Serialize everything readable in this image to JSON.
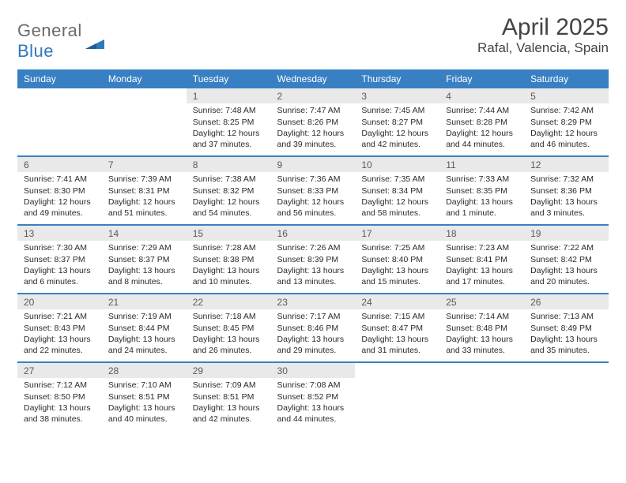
{
  "brand": {
    "part1": "General",
    "part2": "Blue"
  },
  "title": "April 2025",
  "location": "Rafal, Valencia, Spain",
  "colors": {
    "header_bg": "#3880c3",
    "header_fg": "#ffffff",
    "daynum_bg": "#e9e9e9",
    "rule": "#3880c3",
    "logo_gray": "#6b6b6b",
    "logo_blue": "#2f79b9"
  },
  "day_headers": [
    "Sunday",
    "Monday",
    "Tuesday",
    "Wednesday",
    "Thursday",
    "Friday",
    "Saturday"
  ],
  "weeks": [
    [
      {
        "empty": true
      },
      {
        "empty": true
      },
      {
        "n": "1",
        "sr": "Sunrise: 7:48 AM",
        "ss": "Sunset: 8:25 PM",
        "dl": "Daylight: 12 hours and 37 minutes."
      },
      {
        "n": "2",
        "sr": "Sunrise: 7:47 AM",
        "ss": "Sunset: 8:26 PM",
        "dl": "Daylight: 12 hours and 39 minutes."
      },
      {
        "n": "3",
        "sr": "Sunrise: 7:45 AM",
        "ss": "Sunset: 8:27 PM",
        "dl": "Daylight: 12 hours and 42 minutes."
      },
      {
        "n": "4",
        "sr": "Sunrise: 7:44 AM",
        "ss": "Sunset: 8:28 PM",
        "dl": "Daylight: 12 hours and 44 minutes."
      },
      {
        "n": "5",
        "sr": "Sunrise: 7:42 AM",
        "ss": "Sunset: 8:29 PM",
        "dl": "Daylight: 12 hours and 46 minutes."
      }
    ],
    [
      {
        "n": "6",
        "sr": "Sunrise: 7:41 AM",
        "ss": "Sunset: 8:30 PM",
        "dl": "Daylight: 12 hours and 49 minutes."
      },
      {
        "n": "7",
        "sr": "Sunrise: 7:39 AM",
        "ss": "Sunset: 8:31 PM",
        "dl": "Daylight: 12 hours and 51 minutes."
      },
      {
        "n": "8",
        "sr": "Sunrise: 7:38 AM",
        "ss": "Sunset: 8:32 PM",
        "dl": "Daylight: 12 hours and 54 minutes."
      },
      {
        "n": "9",
        "sr": "Sunrise: 7:36 AM",
        "ss": "Sunset: 8:33 PM",
        "dl": "Daylight: 12 hours and 56 minutes."
      },
      {
        "n": "10",
        "sr": "Sunrise: 7:35 AM",
        "ss": "Sunset: 8:34 PM",
        "dl": "Daylight: 12 hours and 58 minutes."
      },
      {
        "n": "11",
        "sr": "Sunrise: 7:33 AM",
        "ss": "Sunset: 8:35 PM",
        "dl": "Daylight: 13 hours and 1 minute."
      },
      {
        "n": "12",
        "sr": "Sunrise: 7:32 AM",
        "ss": "Sunset: 8:36 PM",
        "dl": "Daylight: 13 hours and 3 minutes."
      }
    ],
    [
      {
        "n": "13",
        "sr": "Sunrise: 7:30 AM",
        "ss": "Sunset: 8:37 PM",
        "dl": "Daylight: 13 hours and 6 minutes."
      },
      {
        "n": "14",
        "sr": "Sunrise: 7:29 AM",
        "ss": "Sunset: 8:37 PM",
        "dl": "Daylight: 13 hours and 8 minutes."
      },
      {
        "n": "15",
        "sr": "Sunrise: 7:28 AM",
        "ss": "Sunset: 8:38 PM",
        "dl": "Daylight: 13 hours and 10 minutes."
      },
      {
        "n": "16",
        "sr": "Sunrise: 7:26 AM",
        "ss": "Sunset: 8:39 PM",
        "dl": "Daylight: 13 hours and 13 minutes."
      },
      {
        "n": "17",
        "sr": "Sunrise: 7:25 AM",
        "ss": "Sunset: 8:40 PM",
        "dl": "Daylight: 13 hours and 15 minutes."
      },
      {
        "n": "18",
        "sr": "Sunrise: 7:23 AM",
        "ss": "Sunset: 8:41 PM",
        "dl": "Daylight: 13 hours and 17 minutes."
      },
      {
        "n": "19",
        "sr": "Sunrise: 7:22 AM",
        "ss": "Sunset: 8:42 PM",
        "dl": "Daylight: 13 hours and 20 minutes."
      }
    ],
    [
      {
        "n": "20",
        "sr": "Sunrise: 7:21 AM",
        "ss": "Sunset: 8:43 PM",
        "dl": "Daylight: 13 hours and 22 minutes."
      },
      {
        "n": "21",
        "sr": "Sunrise: 7:19 AM",
        "ss": "Sunset: 8:44 PM",
        "dl": "Daylight: 13 hours and 24 minutes."
      },
      {
        "n": "22",
        "sr": "Sunrise: 7:18 AM",
        "ss": "Sunset: 8:45 PM",
        "dl": "Daylight: 13 hours and 26 minutes."
      },
      {
        "n": "23",
        "sr": "Sunrise: 7:17 AM",
        "ss": "Sunset: 8:46 PM",
        "dl": "Daylight: 13 hours and 29 minutes."
      },
      {
        "n": "24",
        "sr": "Sunrise: 7:15 AM",
        "ss": "Sunset: 8:47 PM",
        "dl": "Daylight: 13 hours and 31 minutes."
      },
      {
        "n": "25",
        "sr": "Sunrise: 7:14 AM",
        "ss": "Sunset: 8:48 PM",
        "dl": "Daylight: 13 hours and 33 minutes."
      },
      {
        "n": "26",
        "sr": "Sunrise: 7:13 AM",
        "ss": "Sunset: 8:49 PM",
        "dl": "Daylight: 13 hours and 35 minutes."
      }
    ],
    [
      {
        "n": "27",
        "sr": "Sunrise: 7:12 AM",
        "ss": "Sunset: 8:50 PM",
        "dl": "Daylight: 13 hours and 38 minutes."
      },
      {
        "n": "28",
        "sr": "Sunrise: 7:10 AM",
        "ss": "Sunset: 8:51 PM",
        "dl": "Daylight: 13 hours and 40 minutes."
      },
      {
        "n": "29",
        "sr": "Sunrise: 7:09 AM",
        "ss": "Sunset: 8:51 PM",
        "dl": "Daylight: 13 hours and 42 minutes."
      },
      {
        "n": "30",
        "sr": "Sunrise: 7:08 AM",
        "ss": "Sunset: 8:52 PM",
        "dl": "Daylight: 13 hours and 44 minutes."
      },
      {
        "empty": true
      },
      {
        "empty": true
      },
      {
        "empty": true
      }
    ]
  ]
}
